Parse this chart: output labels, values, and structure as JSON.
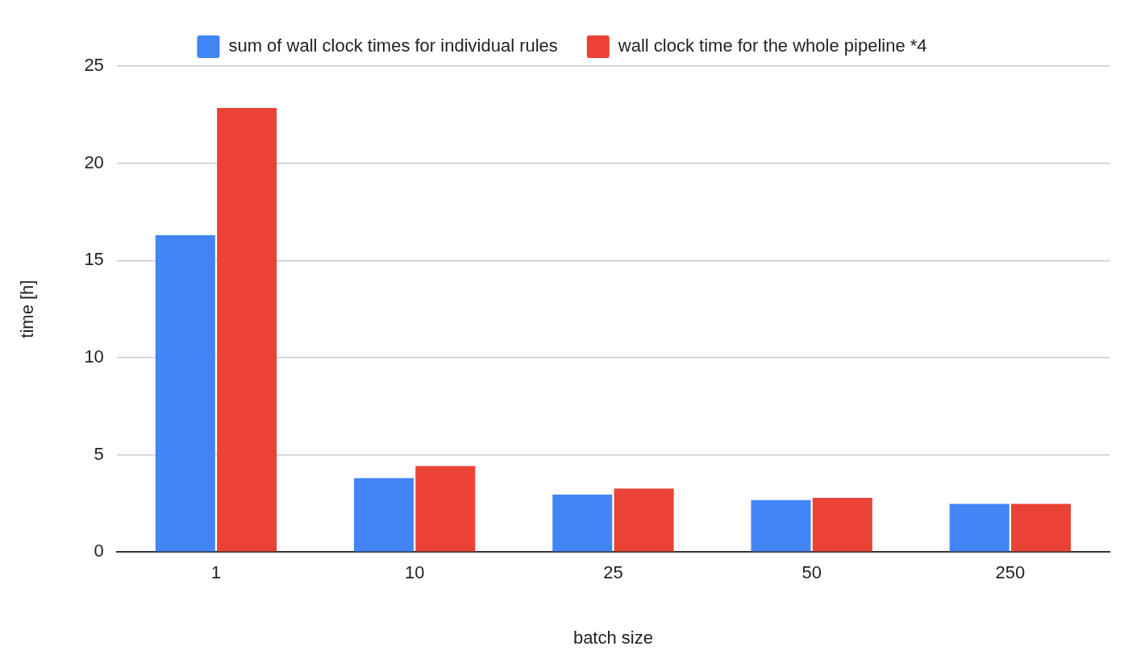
{
  "chart_data": {
    "type": "bar",
    "xlabel": "batch size",
    "ylabel": "time [h]",
    "categories": [
      "1",
      "10",
      "25",
      "50",
      "250"
    ],
    "series": [
      {
        "name": "sum of wall clock times for individual rules",
        "color": "#4285f4",
        "values": [
          16.3,
          3.8,
          2.95,
          2.67,
          2.47
        ]
      },
      {
        "name": "wall clock time for the whole pipeline *4",
        "color": "#ea4335",
        "values": [
          22.85,
          4.42,
          3.26,
          2.79,
          2.47
        ]
      }
    ],
    "ylim": [
      0,
      25
    ],
    "yticks": [
      0,
      5,
      10,
      15,
      20,
      25
    ],
    "grid": "y",
    "legend": "top"
  }
}
